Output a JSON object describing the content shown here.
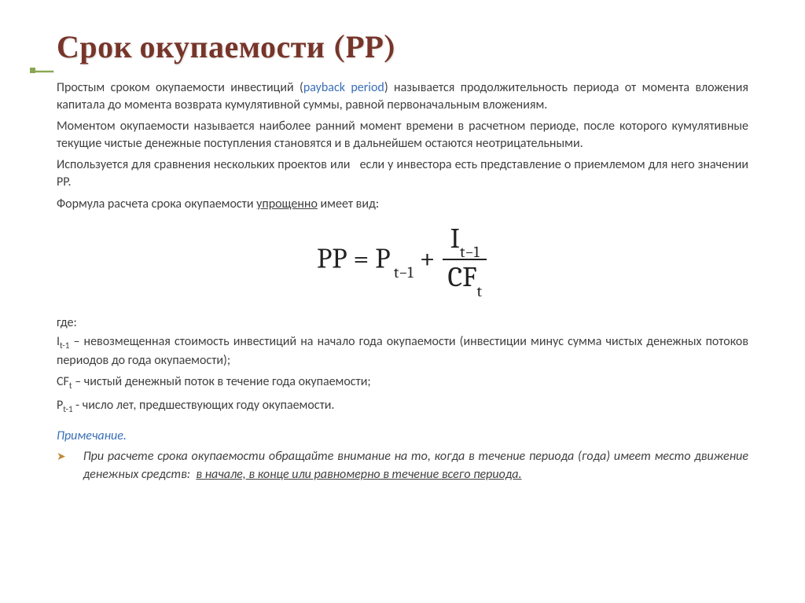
{
  "title": "Срок окупаемости (PP)",
  "para1_pre": "Простым сроком окупаемости инвестиций (",
  "para1_link": "payback period",
  "para1_post": ") называется продолжительность периода от момента вложения капитала до момента возврата кумулятивной суммы, равной первоначальным вложениям.",
  "para2": "Моментом окупаемости называется наиболее ранний момент времени в расчетном периоде, после которого кумулятивные текущие чистые денежные поступления становятся и в дальнейшем остаются неотрицательными.",
  "para3": "Используется для сравнения нескольких проектов или   если у инвестора есть представление о приемлемом для него значении PP.",
  "para4_pre": "Формула расчета срока окупаемости ",
  "para4_u": "упрощенно",
  "para4_post": " имеет вид:",
  "formula": {
    "lhs": "PP",
    "eq": " = ",
    "p_sym": "P",
    "p_sub": " t−1",
    "plus": " + ",
    "num_sym": "I",
    "num_sub": "t−1",
    "den_sym": "CF",
    "den_sub": "t"
  },
  "where_label": "где:",
  "vars": {
    "i_sym": "I",
    "i_sub": "t-1",
    "i_desc": " – невозмещенная стоимость инвестиций на начало года окупаемости (инвестиции минус сумма чистых денежных потоков периодов до года окупаемости);",
    "cf_sym": "CF",
    "cf_sub": "t",
    "cf_desc": " – чистый денежный поток в течение года окупаемости;",
    "p_sym": "P",
    "p_sub": "t-1",
    "p_desc": " - число лет, предшествующих году окупаемости."
  },
  "note_title": "Примечание.",
  "note_arrow": "➤",
  "note_body_pre": "При расчете срока окупаемости обращайте внимание на то, когда в течение периода (года) имеет место движение денежных средств:  ",
  "note_body_u": "в начале, в конце или равномерно в течение всего периода."
}
